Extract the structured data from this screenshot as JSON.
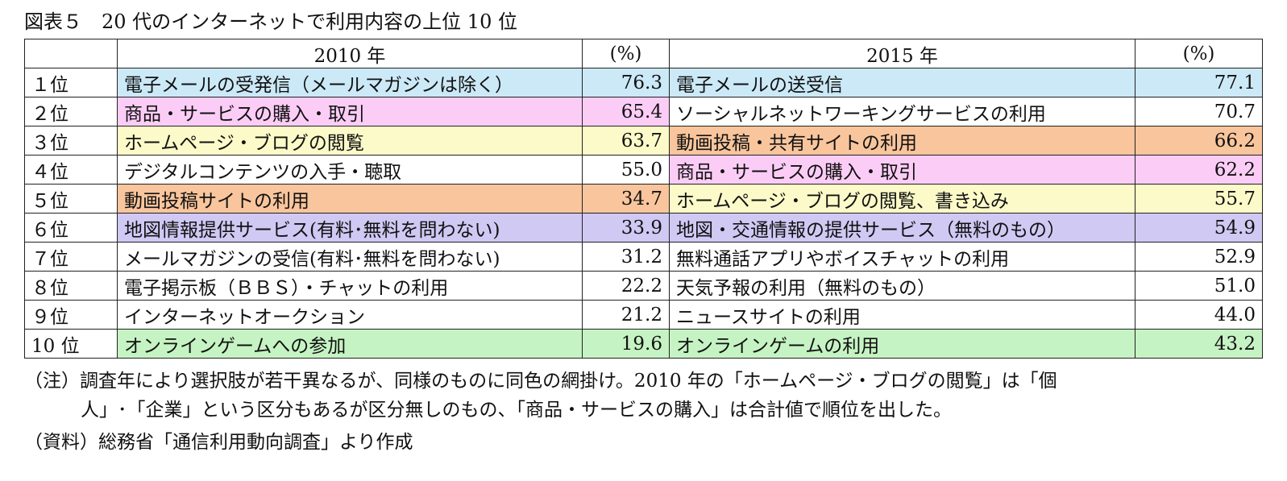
{
  "title": "図表５　20 代のインターネットで利用内容の上位 10 位",
  "header": {
    "col_2010": "2010 年",
    "col_pct_2010": "(%)",
    "col_2015": "2015 年",
    "col_pct_2015": "(%)"
  },
  "colors": {
    "blue": "#cce9f7",
    "pink": "#fbcdf6",
    "yellow": "#fbfac8",
    "orange": "#f9c59c",
    "purple": "#cfc9f3",
    "green": "#c6f3c3"
  },
  "rows": [
    {
      "rank": "１位",
      "item2010": "電子メールの受発信（メールマガジンは除く）",
      "val2010": "76.3",
      "color2010": "blue",
      "item2015": "電子メールの送受信",
      "val2015": "77.1",
      "color2015": "blue"
    },
    {
      "rank": "２位",
      "item2010": "商品・サービスの購入・取引",
      "val2010": "65.4",
      "color2010": "pink",
      "item2015": "ソーシャルネットワーキングサービスの利用",
      "val2015": "70.7",
      "color2015": ""
    },
    {
      "rank": "３位",
      "item2010": "ホームページ・ブログの閲覧",
      "val2010": "63.7",
      "color2010": "yellow",
      "item2015": "動画投稿・共有サイトの利用",
      "val2015": "66.2",
      "color2015": "orange"
    },
    {
      "rank": "４位",
      "item2010": "デジタルコンテンツの入手・聴取",
      "val2010": "55.0",
      "color2010": "",
      "item2015": "商品・サービスの購入・取引",
      "val2015": "62.2",
      "color2015": "pink"
    },
    {
      "rank": "５位",
      "item2010": "動画投稿サイトの利用",
      "val2010": "34.7",
      "color2010": "orange",
      "item2015": "ホームページ・ブログの閲覧、書き込み",
      "val2015": "55.7",
      "color2015": "yellow"
    },
    {
      "rank": "６位",
      "item2010": "地図情報提供サービス(有料･無料を問わない)",
      "val2010": "33.9",
      "color2010": "purple",
      "item2015": "地図・交通情報の提供サービス（無料のもの）",
      "val2015": "54.9",
      "color2015": "purple"
    },
    {
      "rank": "７位",
      "item2010": "メールマガジンの受信(有料･無料を問わない)",
      "val2010": "31.2",
      "color2010": "",
      "item2015": "無料通話アプリやボイスチャットの利用",
      "val2015": "52.9",
      "color2015": ""
    },
    {
      "rank": "８位",
      "item2010": "電子掲示板（ＢＢＳ）・チャットの利用",
      "val2010": "22.2",
      "color2010": "",
      "item2015": "天気予報の利用（無料のもの）",
      "val2015": "51.0",
      "color2015": ""
    },
    {
      "rank": "９位",
      "item2010": "インターネットオークション",
      "val2010": "21.2",
      "color2010": "",
      "item2015": "ニュースサイトの利用",
      "val2015": "44.0",
      "color2015": ""
    },
    {
      "rank": "10 位",
      "item2010": "オンラインゲームへの参加",
      "val2010": "19.6",
      "color2010": "green",
      "item2015": "オンラインゲームの利用",
      "val2015": "43.2",
      "color2015": "green"
    }
  ],
  "notes": {
    "note1": "（注）調査年により選択肢が若干異なるが、同様のものに同色の網掛け。2010 年の「ホームページ・ブログの閲覧」は「個",
    "note2": "人」･「企業」という区分もあるが区分無しのもの、「商品・サービスの購入」は合計値で順位を出した。",
    "note3": "（資料）総務省「通信利用動向調査」より作成"
  }
}
